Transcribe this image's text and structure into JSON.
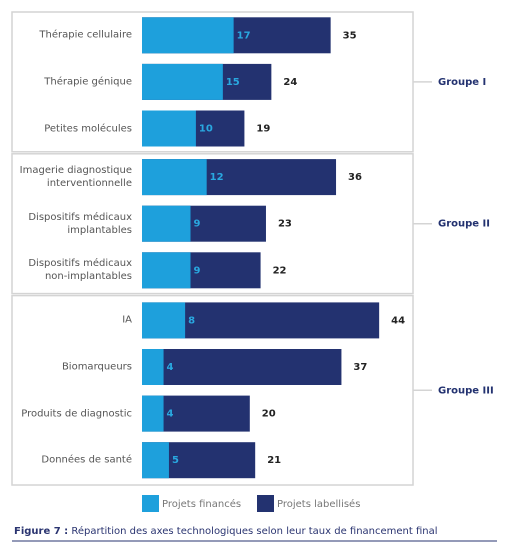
{
  "chart_data": {
    "type": "bar",
    "categories": [
      "Thérapie cellulaire",
      "Thérapie génique",
      "Petites molécules",
      "Imagerie diagnostique\ninterventionnelle",
      "Dispositifs médicaux\nimplantables",
      "Dispositifs médicaux\nnon-implantables",
      "IA",
      "Biomarqueurs",
      "Produits de diagnostic",
      "Données de santé"
    ],
    "series": [
      {
        "name": "Projets financés",
        "color": "#1ea0dc",
        "values": [
          17,
          15,
          10,
          12,
          9,
          9,
          8,
          4,
          4,
          5
        ]
      },
      {
        "name": "Projets labellisés",
        "color": "#233270",
        "values": [
          35,
          24,
          19,
          36,
          23,
          22,
          44,
          37,
          20,
          21
        ]
      }
    ],
    "groups": [
      "Groupe I",
      "Groupe II",
      "Groupe III"
    ],
    "caption": {
      "label": "Figure 7 :",
      "text": "Répartition des axes technologiques selon leur taux de financement final"
    }
  }
}
